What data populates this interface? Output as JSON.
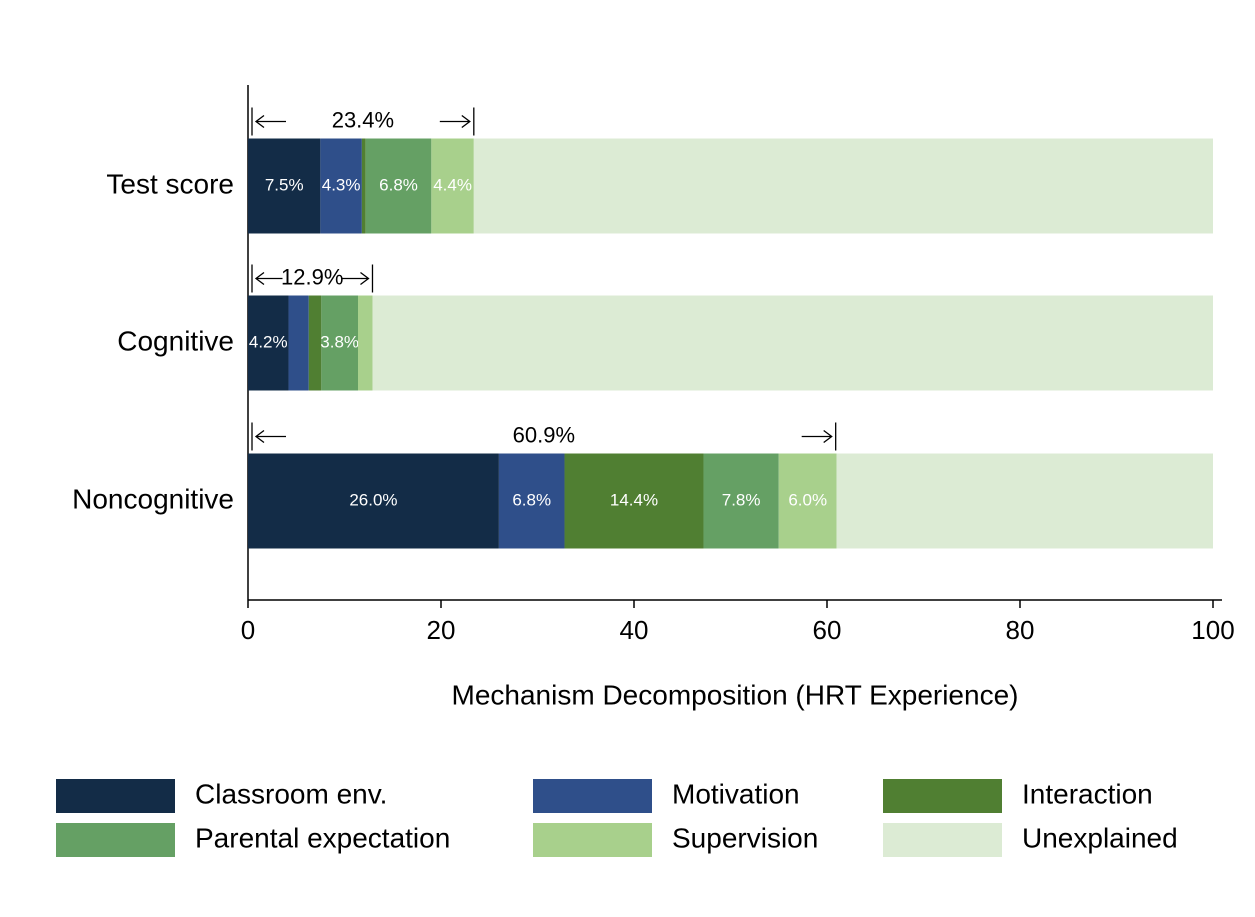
{
  "chart_data": {
    "type": "stacked-barh",
    "xlabel": "Mechanism Decomposition (HRT Experience)",
    "categories": [
      "Test score",
      "Cognitive",
      "Noncognitive"
    ],
    "series": [
      {
        "name": "Classroom env.",
        "color": "#132c47",
        "values": [
          7.5,
          4.2,
          26.0
        ],
        "value_labels": [
          "7.5%",
          "4.2%",
          "26.0%"
        ]
      },
      {
        "name": "Motivation",
        "color": "#2f4f8a",
        "values": [
          4.3,
          2.1,
          6.8
        ],
        "value_labels": [
          "4.3%",
          null,
          "6.8%"
        ]
      },
      {
        "name": "Interaction",
        "color": "#507f32",
        "values": [
          0.4,
          1.3,
          14.4
        ],
        "value_labels": [
          null,
          null,
          "14.4%"
        ]
      },
      {
        "name": "Parental expectation",
        "color": "#65a064",
        "values": [
          6.8,
          3.8,
          7.8
        ],
        "value_labels": [
          "6.8%",
          "3.8%",
          "7.8%"
        ]
      },
      {
        "name": "Supervision",
        "color": "#a8d08c",
        "values": [
          4.4,
          1.5,
          6.0
        ],
        "value_labels": [
          "4.4%",
          null,
          "6.0%"
        ]
      },
      {
        "name": "Unexplained",
        "color": "#dcebd4",
        "values": [
          76.6,
          87.1,
          39.0
        ]
      }
    ],
    "totals": [
      {
        "value": 23.4,
        "label": "23.4%"
      },
      {
        "value": 12.9,
        "label": "12.9%"
      },
      {
        "value": 60.9,
        "label": "60.9%"
      }
    ],
    "xlim": [
      0,
      100
    ],
    "xticks": [
      0,
      20,
      40,
      60,
      80,
      100
    ]
  }
}
